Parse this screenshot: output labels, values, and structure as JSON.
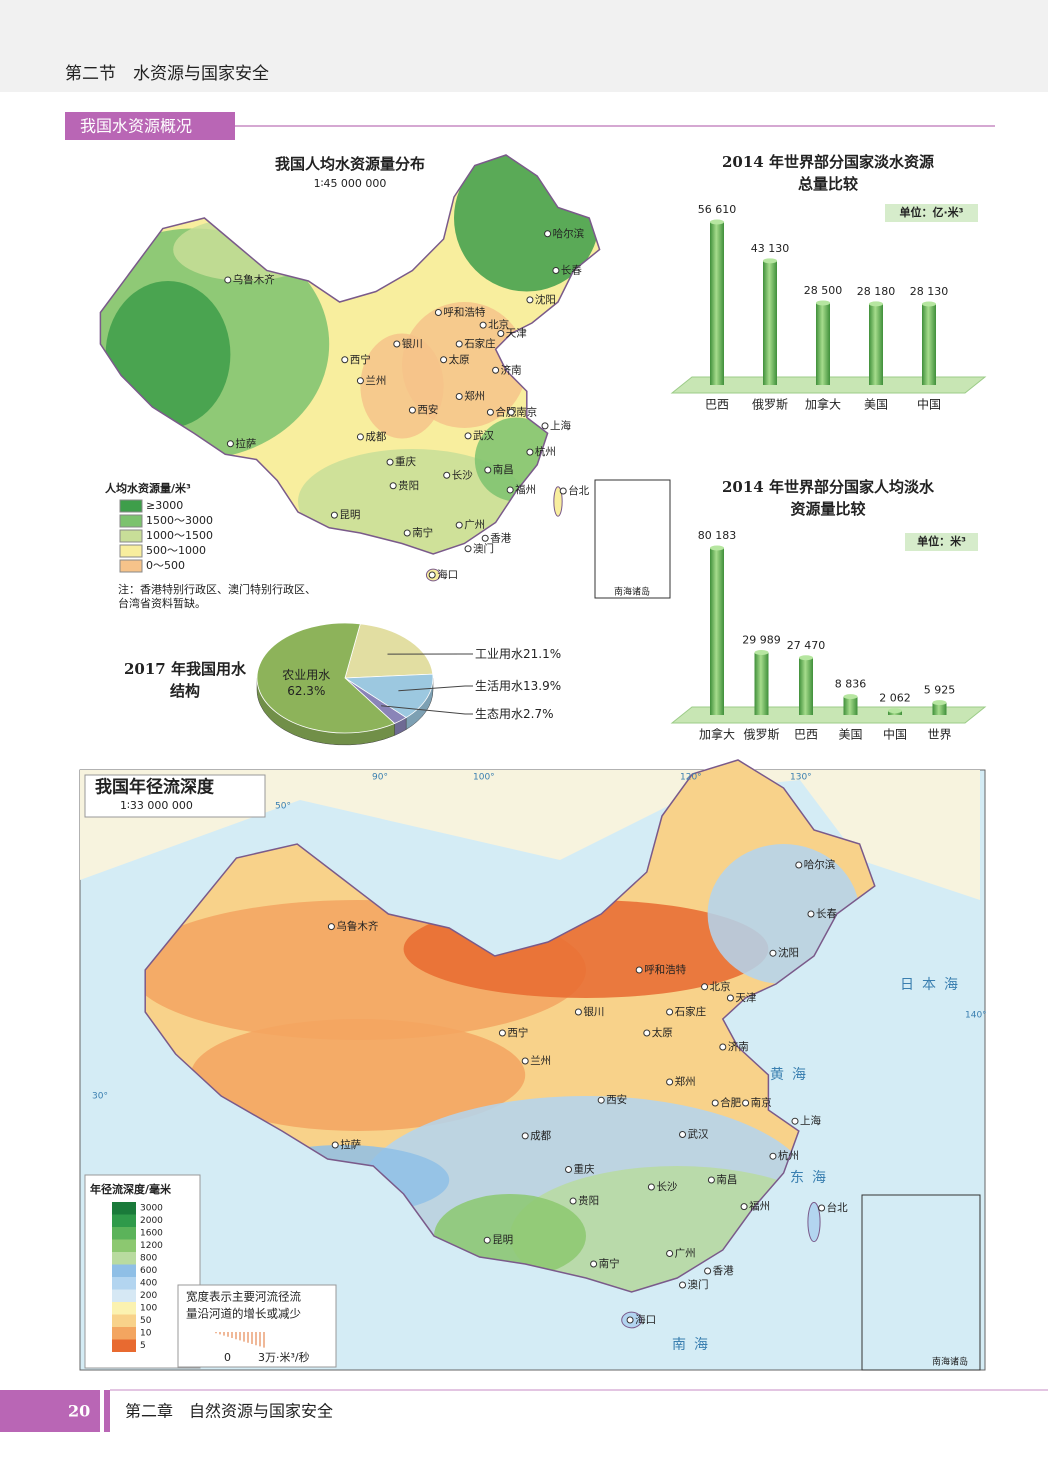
{
  "header": {
    "section": "第二节　水资源与国家安全"
  },
  "banner": "我国水资源概况",
  "map1": {
    "title": "我国人均水资源量分布",
    "scale": "1∶45 000 000",
    "cities": [
      "乌鲁木齐",
      "哈尔滨",
      "长春",
      "沈阳",
      "呼和浩特",
      "北京",
      "天津",
      "石家庄",
      "银川",
      "西宁",
      "兰州",
      "太原",
      "济南",
      "郑州",
      "西安",
      "合肥",
      "南京",
      "上海",
      "拉萨",
      "成都",
      "武汉",
      "杭州",
      "重庆",
      "长沙",
      "南昌",
      "贵阳",
      "福州",
      "台北",
      "昆明",
      "南宁",
      "广州",
      "香港",
      "澳门",
      "海口"
    ],
    "legend": {
      "title": "人均水资源量/米³",
      "items": [
        "≥3000",
        "1500～3000",
        "1000～1500",
        "500～1000",
        "0～500"
      ],
      "colors": [
        "#3e9e4a",
        "#7cc26e",
        "#c8de98",
        "#f8ee9e",
        "#f6c38a"
      ]
    },
    "note": [
      "注：香港特别行政区、澳门特别行政区、",
      "台湾省资料暂缺。"
    ],
    "inset": "南海诸岛"
  },
  "chart_data": [
    {
      "type": "bar",
      "title": [
        "2014 年世界部分国家淡水资源",
        "总量比较"
      ],
      "unit": "单位：亿·米³",
      "categories": [
        "巴西",
        "俄罗斯",
        "加拿大",
        "美国",
        "中国"
      ],
      "values": [
        56610,
        43130,
        28500,
        28180,
        28130
      ],
      "value_labels": [
        "56 610",
        "43 130",
        "28 500",
        "28 180",
        "28 130"
      ],
      "color": "#5fb04f"
    },
    {
      "type": "bar",
      "title": [
        "2014 年世界部分国家人均淡水",
        "资源量比较"
      ],
      "unit": "单位：米³",
      "categories": [
        "加拿大",
        "俄罗斯",
        "巴西",
        "美国",
        "中国",
        "世界"
      ],
      "values": [
        80183,
        29989,
        27470,
        8836,
        2062,
        5925
      ],
      "value_labels": [
        "80 183",
        "29 989",
        "27 470",
        "8 836",
        "2 062",
        "5 925"
      ],
      "color": "#5fb04f"
    },
    {
      "type": "pie",
      "title": [
        "2017 年我国用水",
        "结构"
      ],
      "categories": [
        "工业用水",
        "生活用水",
        "生态用水",
        "农业用水"
      ],
      "values": [
        21.1,
        13.9,
        2.7,
        62.3
      ],
      "value_labels": [
        "21.1%",
        "13.9%",
        "2.7%",
        "62.3%"
      ],
      "colors": [
        "#e2deA2",
        "#9cc8e0",
        "#8a84b8",
        "#8db35a"
      ]
    }
  ],
  "map2": {
    "title": "我国年径流深度",
    "scale": "1∶33 000 000",
    "cities": [
      "乌鲁木齐",
      "哈尔滨",
      "长春",
      "沈阳",
      "呼和浩特",
      "北京",
      "天津",
      "石家庄",
      "银川",
      "西宁",
      "兰州",
      "太原",
      "济南",
      "郑州",
      "西安",
      "合肥",
      "南京",
      "上海",
      "拉萨",
      "成都",
      "武汉",
      "杭州",
      "重庆",
      "长沙",
      "南昌",
      "贵阳",
      "福州",
      "台北",
      "昆明",
      "南宁",
      "广州",
      "香港",
      "澳门",
      "海口"
    ],
    "seas": [
      "日本海",
      "黄海",
      "东海",
      "南海"
    ],
    "graticule": [
      "90°",
      "100°",
      "120°",
      "130°",
      "50°",
      "30°",
      "140°"
    ],
    "legend": {
      "title": "年径流深度/毫米",
      "items": [
        "3000",
        "2000",
        "1600",
        "1200",
        "800",
        "600",
        "400",
        "200",
        "100",
        "50",
        "10",
        "5"
      ],
      "colors": [
        "#1a7a3a",
        "#2f9a4a",
        "#5bb35a",
        "#8cc870",
        "#b9dba0",
        "#8fbfe6",
        "#b3d5f0",
        "#d6e8f4",
        "#fbf2b0",
        "#f8d28a",
        "#f3a560",
        "#e86a30"
      ]
    },
    "note": [
      "宽度表示主要河流径流",
      "量沿河道的增长或减少"
    ],
    "flow_scale": [
      "0",
      "3万·米³/秒"
    ],
    "inset": "南海诸岛"
  },
  "footer": {
    "page": "20",
    "chapter": "第二章　自然资源与国家安全"
  }
}
